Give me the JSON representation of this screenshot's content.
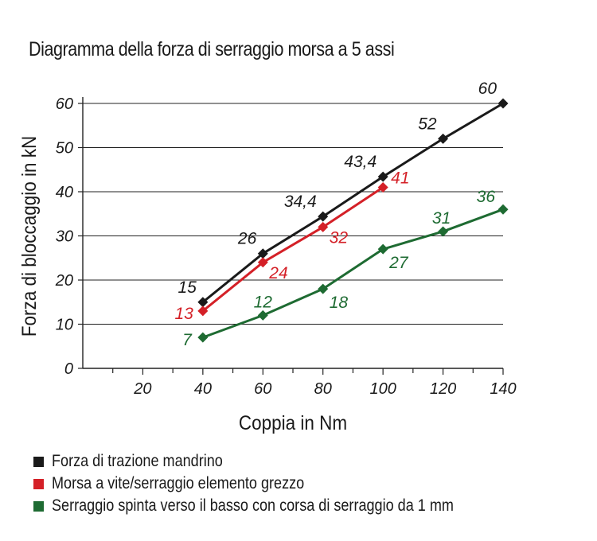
{
  "chart_data": {
    "type": "line",
    "title": "Diagramma della forza di serraggio morsa a 5 assi",
    "xlabel": "Coppia in Nm",
    "ylabel": "Forza di bloccaggio in kN",
    "xlim": [
      0,
      140
    ],
    "ylim": [
      0,
      60
    ],
    "x_ticks": [
      "20",
      "40",
      "60",
      "80",
      "100",
      "120",
      "140"
    ],
    "y_ticks": [
      "0",
      "10",
      "20",
      "30",
      "40",
      "50",
      "60"
    ],
    "grid": "horizontal",
    "legend_position": "bottom",
    "series": [
      {
        "name": "Forza di trazione mandrino",
        "color": "#1a1a1a",
        "x": [
          40,
          60,
          80,
          100,
          120,
          140
        ],
        "y": [
          15,
          26,
          34.4,
          43.4,
          52,
          60
        ],
        "labels": [
          "15",
          "26",
          "34,4",
          "43,4",
          "52",
          "60"
        ]
      },
      {
        "name": "Morsa a vite/serraggio elemento grezzo",
        "color": "#d42027",
        "x": [
          40,
          60,
          80,
          100
        ],
        "y": [
          13,
          24,
          32,
          41
        ],
        "labels": [
          "13",
          "24",
          "32",
          "41"
        ]
      },
      {
        "name": "Serraggio spinta verso il basso con corsa di serraggio da 1 mm",
        "color": "#1e6b32",
        "x": [
          40,
          60,
          80,
          100,
          120,
          140
        ],
        "y": [
          7,
          12,
          18,
          27,
          31,
          36
        ],
        "labels": [
          "7",
          "12",
          "18",
          "27",
          "31",
          "36"
        ]
      }
    ]
  }
}
